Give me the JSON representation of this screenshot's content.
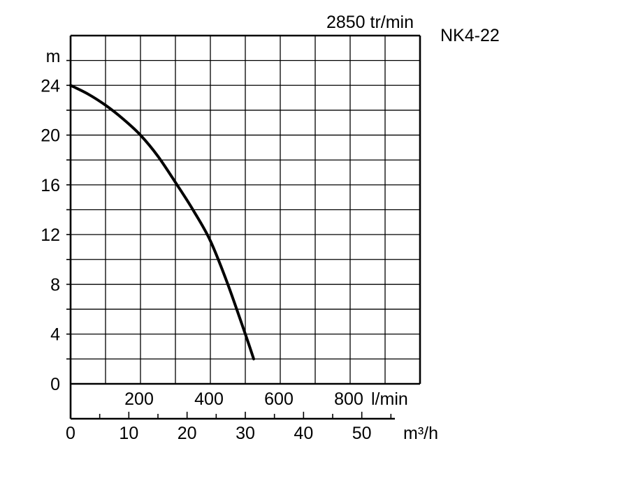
{
  "chart_data": {
    "type": "line",
    "title": "NK4-22",
    "subtitle": "2850 tr/min",
    "ylabel": "m",
    "ylim": [
      0,
      28
    ],
    "y_ticks": [
      0,
      4,
      8,
      12,
      16,
      20,
      24
    ],
    "y_tick_labels": [
      "0",
      "4",
      "8",
      "12",
      "16",
      "20",
      "24"
    ],
    "xlim_lmin": [
      0,
      1000
    ],
    "x_ticks_lmin": [
      200,
      400,
      600,
      800
    ],
    "x_tick_labels_lmin": [
      "200",
      "400",
      "600",
      "800"
    ],
    "x_unit_lmin": "l/min",
    "x_ticks_m3h": [
      0,
      10,
      20,
      30,
      40,
      50
    ],
    "x_tick_labels_m3h": [
      "0",
      "10",
      "20",
      "30",
      "40",
      "50"
    ],
    "x_unit_m3h": "m³/h",
    "grid": true,
    "series": [
      {
        "x": [
          0,
          50,
          100,
          150,
          200,
          250,
          300,
          350,
          400,
          450,
          500,
          524
        ],
        "y": [
          24,
          23.3,
          22.4,
          21.3,
          20,
          18.3,
          16.2,
          14,
          11.5,
          8,
          4,
          2
        ]
      }
    ]
  }
}
